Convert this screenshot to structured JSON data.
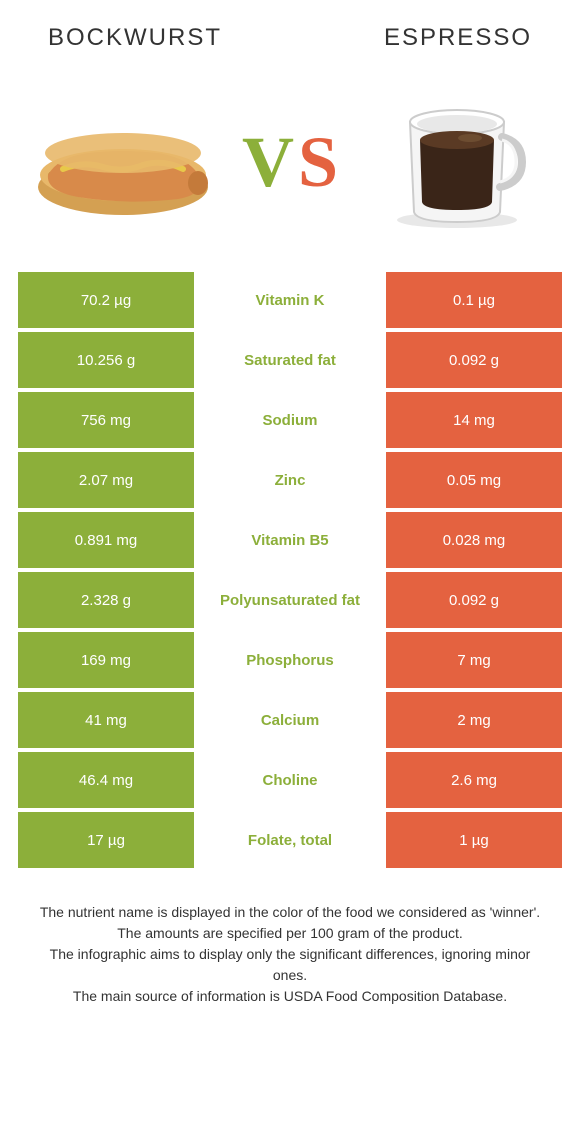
{
  "header": {
    "left_title": "BOCKWURST",
    "right_title": "ESPRESSO"
  },
  "vs": {
    "v": "V",
    "s": "S"
  },
  "colors": {
    "left_bg": "#8caf3a",
    "right_bg": "#e46240",
    "text_dark": "#333333",
    "white": "#ffffff"
  },
  "table": {
    "rows": [
      {
        "left": "70.2 µg",
        "label": "Vitamin K",
        "right": "0.1 µg",
        "winner": "left"
      },
      {
        "left": "10.256 g",
        "label": "Saturated fat",
        "right": "0.092 g",
        "winner": "left"
      },
      {
        "left": "756 mg",
        "label": "Sodium",
        "right": "14 mg",
        "winner": "left"
      },
      {
        "left": "2.07 mg",
        "label": "Zinc",
        "right": "0.05 mg",
        "winner": "left"
      },
      {
        "left": "0.891 mg",
        "label": "Vitamin B5",
        "right": "0.028 mg",
        "winner": "left"
      },
      {
        "left": "2.328 g",
        "label": "Polyunsaturated fat",
        "right": "0.092 g",
        "winner": "left"
      },
      {
        "left": "169 mg",
        "label": "Phosphorus",
        "right": "7 mg",
        "winner": "left"
      },
      {
        "left": "41 mg",
        "label": "Calcium",
        "right": "2 mg",
        "winner": "left"
      },
      {
        "left": "46.4 mg",
        "label": "Choline",
        "right": "2.6 mg",
        "winner": "left"
      },
      {
        "left": "17 µg",
        "label": "Folate, total",
        "right": "1 µg",
        "winner": "left"
      }
    ]
  },
  "footer": {
    "line1": "The nutrient name is displayed in the color of the food we considered as 'winner'.",
    "line2": "The amounts are specified per 100 gram of the product.",
    "line3": "The infographic aims to display only the significant differences, ignoring minor ones.",
    "line4": "The main source of information is USDA Food Composition Database."
  }
}
